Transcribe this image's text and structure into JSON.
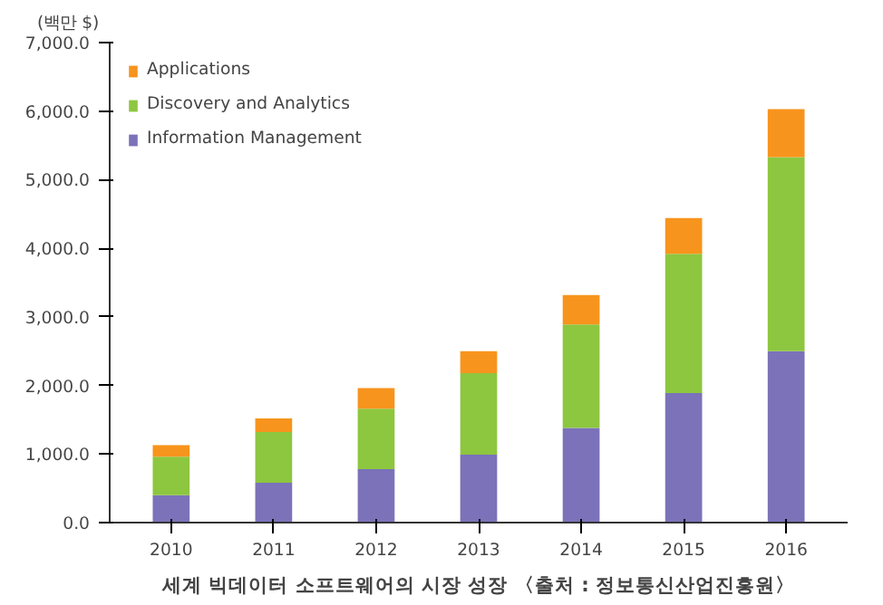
{
  "chart_data": {
    "type": "bar",
    "stacked": true,
    "ylabel": "(백만 $)",
    "categories": [
      "2010",
      "2011",
      "2012",
      "2013",
      "2014",
      "2015",
      "2016"
    ],
    "series": [
      {
        "name": "Information Management",
        "color": "#7b72b9",
        "values": [
          400,
          580,
          780,
          990,
          1380,
          1890,
          2500
        ]
      },
      {
        "name": "Discovery and Analytics",
        "color": "#8dc63f",
        "values": [
          560,
          740,
          880,
          1190,
          1510,
          2030,
          2830
        ]
      },
      {
        "name": "Applications",
        "color": "#f7941d",
        "values": [
          170,
          200,
          300,
          320,
          430,
          520,
          700
        ]
      }
    ],
    "ylim": [
      0,
      7000
    ],
    "yticks": [
      {
        "value": 0,
        "label": "0.0"
      },
      {
        "value": 1000,
        "label": "1,000.0"
      },
      {
        "value": 2000,
        "label": "2,000.0"
      },
      {
        "value": 3000,
        "label": "3,000.0"
      },
      {
        "value": 4000,
        "label": "4,000.0"
      },
      {
        "value": 5000,
        "label": "5,000.0"
      },
      {
        "value": 6000,
        "label": "6,000.0"
      },
      {
        "value": 7000,
        "label": "7,000.0"
      }
    ],
    "grid": false,
    "legend": "top left",
    "annotations": [
      "세계 빅데이터 소프트웨어의 시장 성장 〈출처 : 정보통신산업진흥원〉"
    ]
  }
}
